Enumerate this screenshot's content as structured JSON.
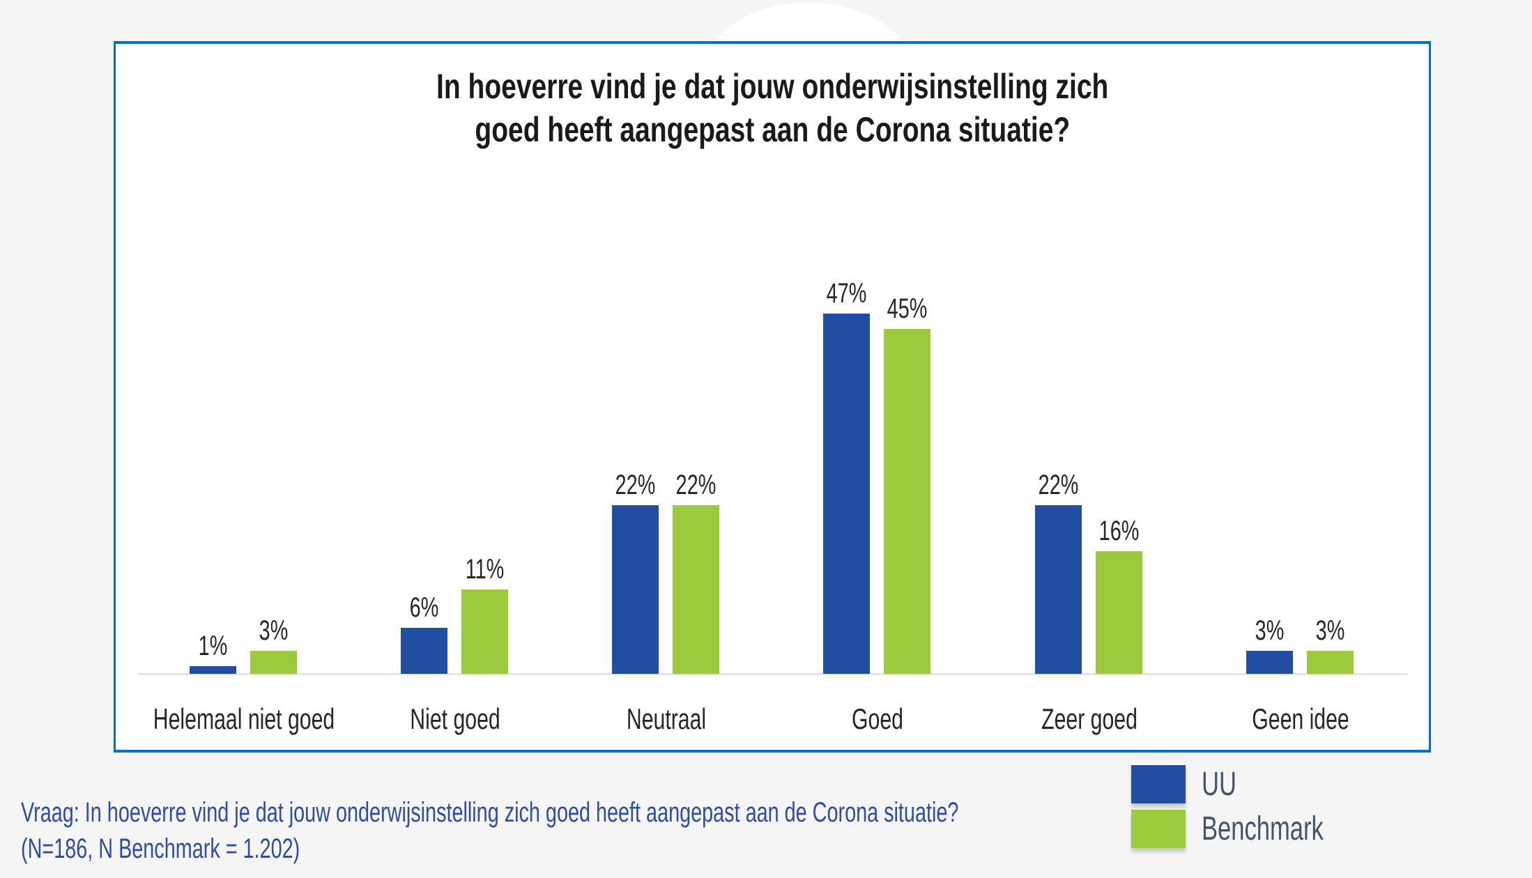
{
  "chart_data": {
    "type": "bar",
    "title": "In hoeverre vind je dat jouw onderwijsinstelling zich goed heeft aangepast aan de Corona situatie?",
    "title_lines": [
      "In hoeverre vind je dat jouw onderwijsinstelling zich",
      "goed heeft aangepast aan de Corona situatie?"
    ],
    "categories": [
      "Helemaal niet goed",
      "Niet goed",
      "Neutraal",
      "Goed",
      "Zeer goed",
      "Geen idee"
    ],
    "series": [
      {
        "name": "UU",
        "color": "#214EA3",
        "values": [
          1,
          6,
          22,
          47,
          22,
          3
        ]
      },
      {
        "name": "Benchmark",
        "color": "#9BCA3C",
        "values": [
          3,
          11,
          22,
          45,
          16,
          3
        ]
      }
    ],
    "value_suffix": "%",
    "legend_placement": "bottom-right",
    "grid": false,
    "ylim": [
      0,
      50
    ]
  },
  "footer": {
    "question": "Vraag: In hoeverre vind je dat jouw onderwijsinstelling zich goed heeft aangepast aan de Corona situatie?",
    "sample": "(N=186, N Benchmark = 1.202)"
  },
  "colors": {
    "frame": "#0070C0",
    "footer_text": "#2E4BA8"
  }
}
